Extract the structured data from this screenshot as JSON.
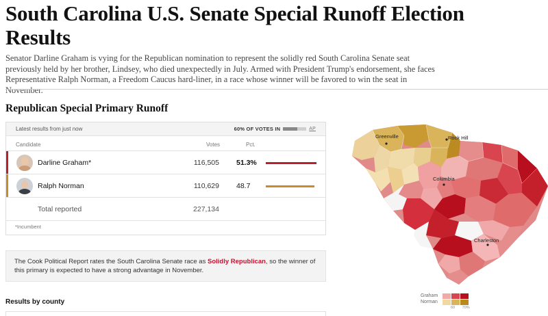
{
  "article": {
    "headline": "South Carolina U.S. Senate Special Runoff Election Results",
    "dek": "Senator Darline Graham is vying for the Republican nomination to represent the solidly red South Carolina Senate seat previously held by her brother, Lindsey, who died unexpectedly in July. Armed with President Trump's endorsement, she faces Representative Ralph Norman, a Freedom Caucus hard-liner, in a race whose winner will be favored to win the seat in November."
  },
  "race": {
    "title": "Republican Special Primary Runoff",
    "latest": "Latest results from just now",
    "reporting": "60% OF VOTES IN",
    "reporting_fraction": 0.6,
    "source": "AP",
    "headers": {
      "candidate": "Candidate",
      "votes": "Votes",
      "pct": "Pct."
    },
    "candidates": [
      {
        "name": "Darline Graham*",
        "votes": "116,505",
        "pct": "51.3%",
        "pct_value": 51.3,
        "color": "#b8202c"
      },
      {
        "name": "Ralph Norman",
        "votes": "110,629",
        "pct": "48.7",
        "pct_value": 48.7,
        "color": "#c98a2c"
      }
    ],
    "total_label": "Total reported",
    "total_votes": "227,134",
    "footnote": "*Incumbent"
  },
  "cook": {
    "text_before": "The Cook Political Report rates the South Carolina Senate race as ",
    "rating": "Solidly Republican",
    "text_after": ", so the winner of this primary is expected to have a strong advantage in November."
  },
  "county_section": {
    "title": "Results by county"
  },
  "map": {
    "cities": [
      "Greenville",
      "Rock Hill",
      "Columbia",
      "Charleston"
    ]
  },
  "legend": {
    "graham_label": "Graham",
    "norman_label": "Norman",
    "graham_colors": [
      "#f0a8a8",
      "#d9454e",
      "#b80f1f"
    ],
    "norman_colors": [
      "#f0d9a0",
      "#d9b45a",
      "#b8891c"
    ],
    "tick_1": "60",
    "tick_2": "70%"
  }
}
